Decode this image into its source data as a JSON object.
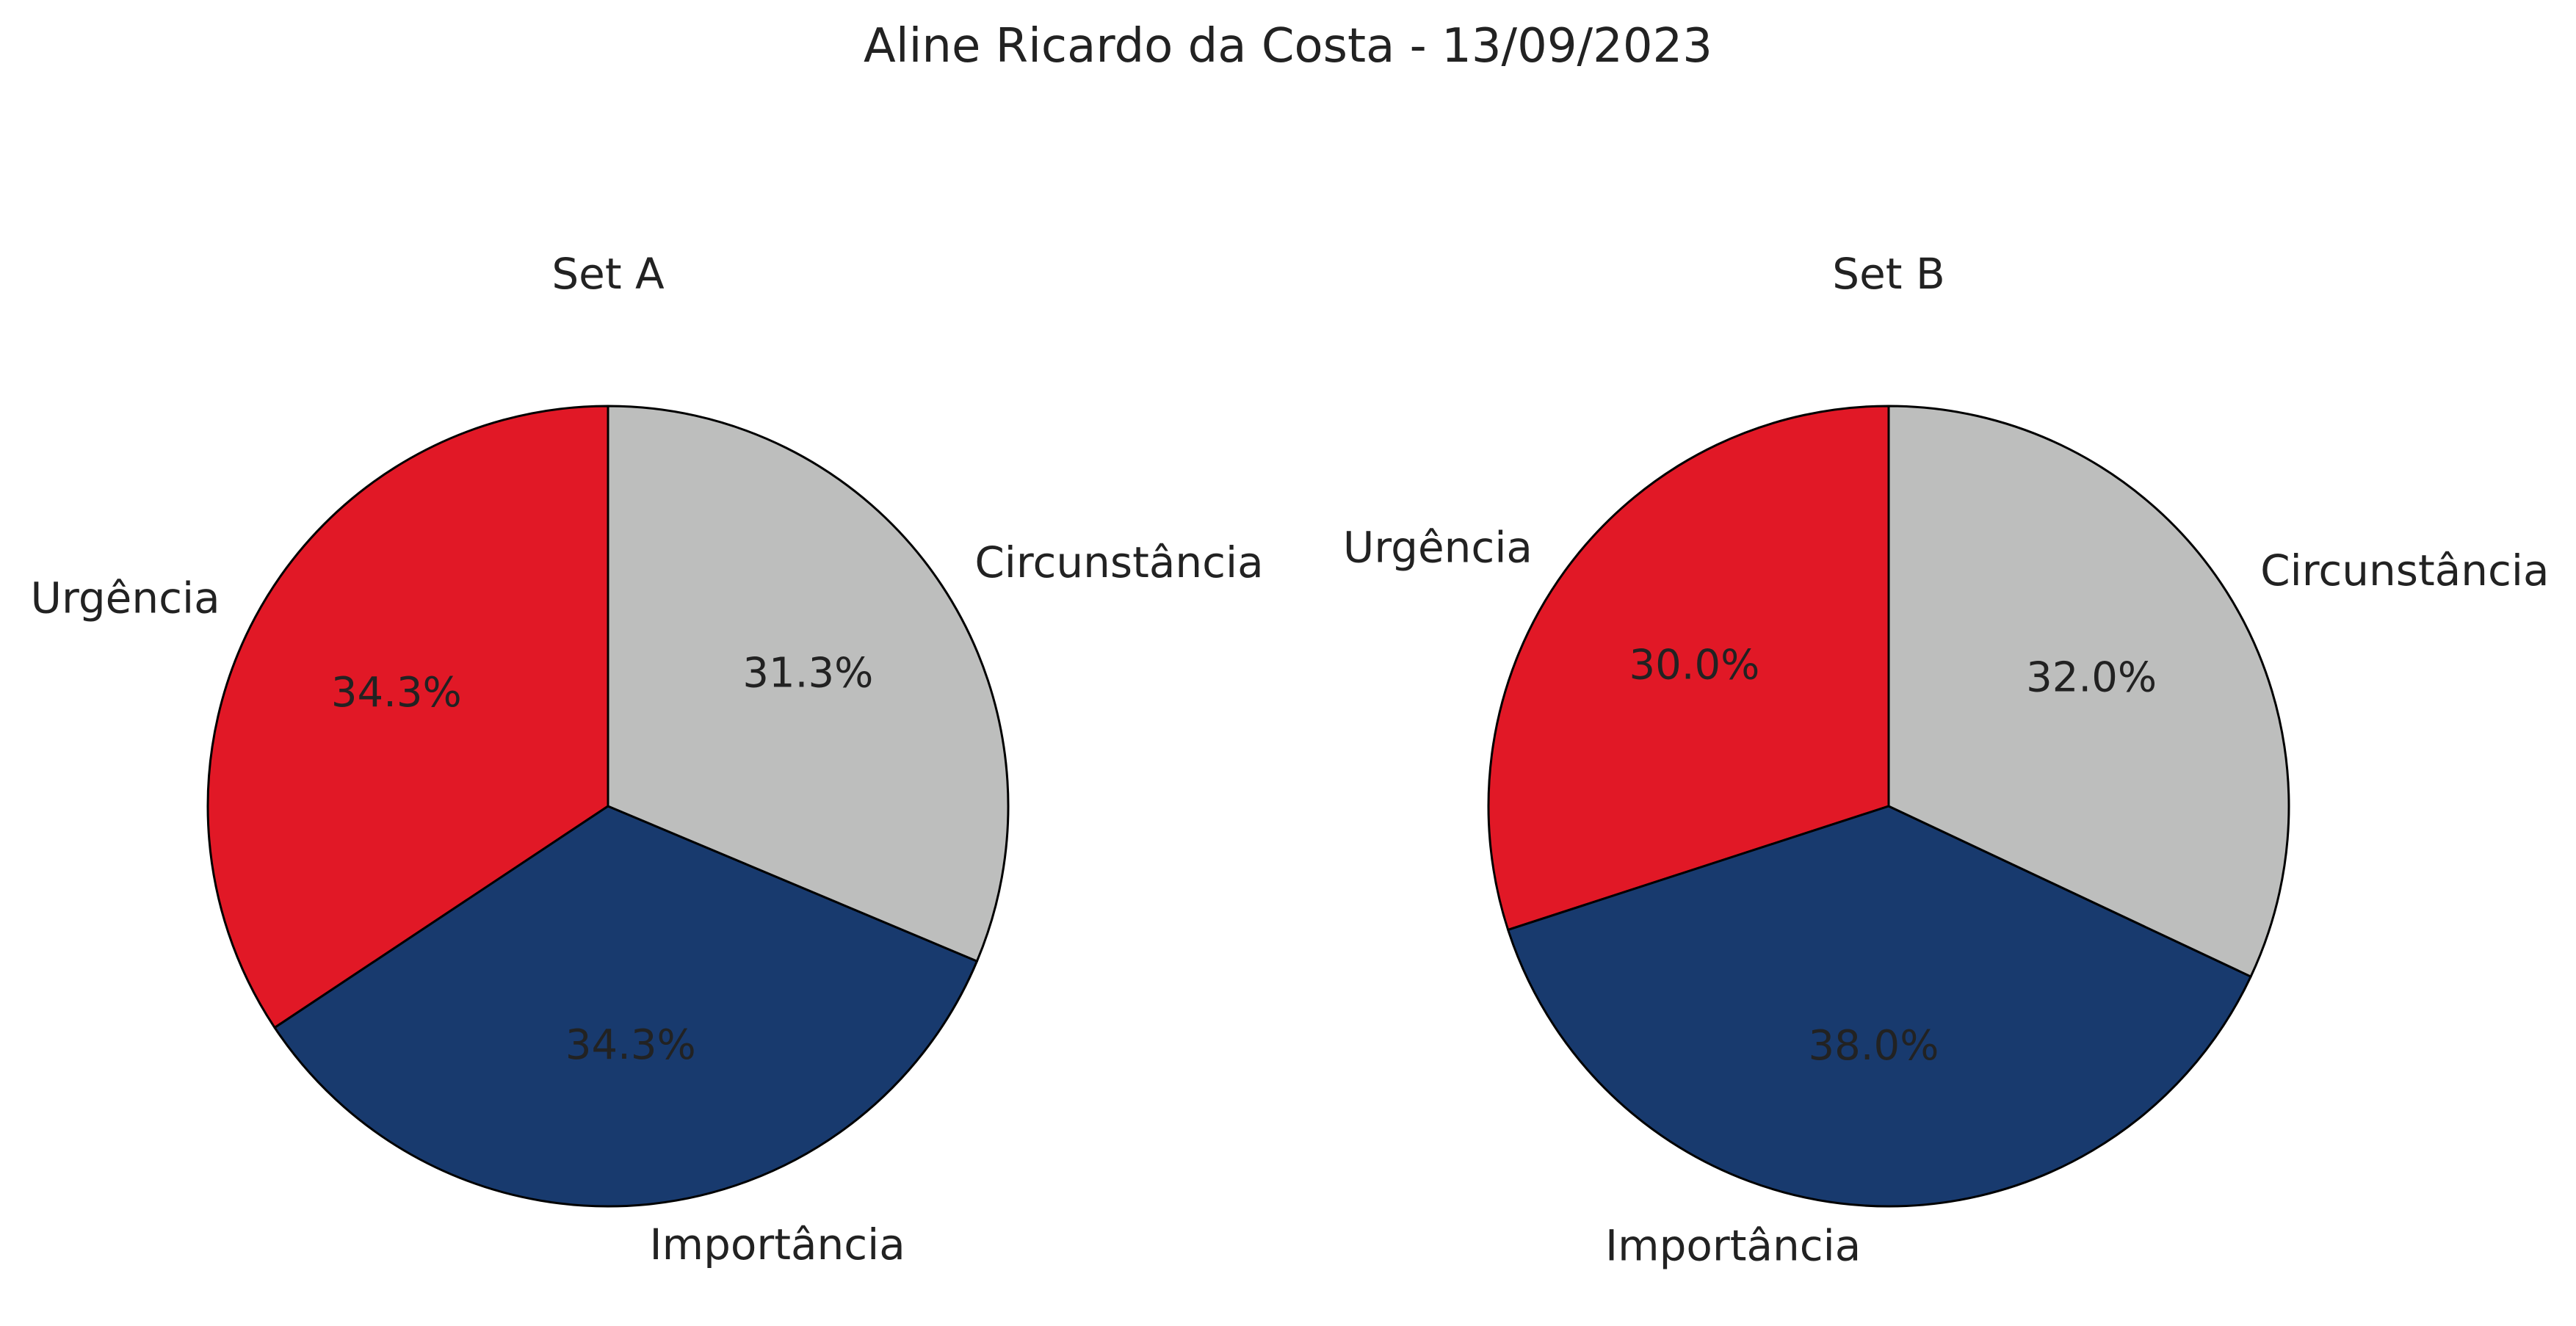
{
  "title": "Aline Ricardo da Costa - 13/09/2023",
  "chart_data": [
    {
      "type": "pie",
      "title": "Set A",
      "categories": [
        "Urgência",
        "Importância",
        "Circunstância"
      ],
      "values": [
        34.3,
        34.3,
        31.3
      ],
      "value_labels": [
        "34.3%",
        "34.3%",
        "31.3%"
      ],
      "colors": [
        "#e11826",
        "#183a6e",
        "#bdbebd"
      ],
      "legend": "none"
    },
    {
      "type": "pie",
      "title": "Set B",
      "categories": [
        "Urgência",
        "Importância",
        "Circunstância"
      ],
      "values": [
        30.0,
        38.0,
        32.0
      ],
      "value_labels": [
        "30.0%",
        "38.0%",
        "32.0%"
      ],
      "colors": [
        "#e11826",
        "#183a6e",
        "#bdbebd"
      ],
      "legend": "none"
    }
  ]
}
